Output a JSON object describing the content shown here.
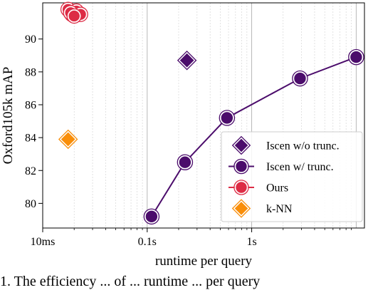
{
  "chart_data": {
    "type": "scatter",
    "xlabel": "runtime per query",
    "ylabel": "Oxford105k mAP",
    "xscale": "log",
    "xlim": [
      0.01,
      12
    ],
    "ylim": [
      78.5,
      92.2
    ],
    "xticks": [
      {
        "value": 0.01,
        "label": "10ms"
      },
      {
        "value": 0.1,
        "label": "0.1s"
      },
      {
        "value": 1,
        "label": "1s"
      }
    ],
    "yticks": [
      80,
      82,
      84,
      86,
      88,
      90
    ],
    "grid": "vertical log grid",
    "legend_position": "lower-right",
    "series": [
      {
        "name": "Iscen w/o trunc.",
        "marker": "diamond",
        "color": "#4b0c6b",
        "line": false,
        "x": [
          0.24
        ],
        "y": [
          88.7
        ]
      },
      {
        "name": "Iscen w/ trunc.",
        "marker": "circle",
        "color": "#4b0c6b",
        "line": true,
        "x": [
          0.11,
          0.23,
          0.58,
          2.9,
          10.0
        ],
        "y": [
          79.2,
          82.5,
          85.2,
          87.6,
          88.9
        ]
      },
      {
        "name": "Ours",
        "marker": "circle",
        "color": "#dd2c45",
        "line": true,
        "x": [
          0.0175,
          0.019,
          0.021,
          0.023,
          0.0185,
          0.02
        ],
        "y": [
          91.8,
          91.5,
          91.7,
          91.5,
          91.6,
          91.4
        ]
      },
      {
        "name": "k-NN",
        "marker": "diamond",
        "color": "#f98e09",
        "line": false,
        "x": [
          0.0175
        ],
        "y": [
          83.9
        ]
      }
    ]
  },
  "caption": "1.  The efficiency ... of ... runtime ... per query"
}
